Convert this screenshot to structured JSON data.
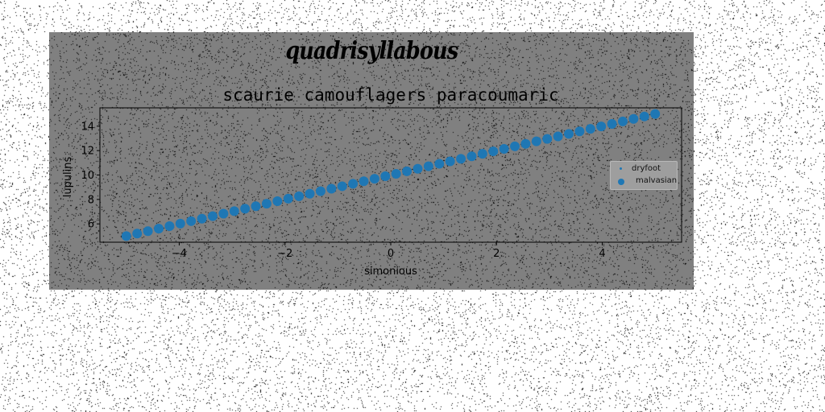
{
  "figure": {
    "suptitle": "quadrisyllabous"
  },
  "colors": {
    "page_background": "#ffffff",
    "panel_background": "#808080",
    "series_color": "#1f77b4",
    "noise_color": "#000000"
  },
  "chart_data": {
    "type": "scatter",
    "title": "scaurie camouflagers paracoumaric",
    "xlabel": "simonious",
    "ylabel": "lupulins",
    "xlim": [
      -5.5,
      5.5
    ],
    "ylim": [
      4.5,
      15.5
    ],
    "xticks": [
      -4,
      -2,
      0,
      2,
      4
    ],
    "yticks": [
      6,
      8,
      10,
      12,
      14
    ],
    "xtick_labels": [
      "−4",
      "−2",
      "0",
      "2",
      "4"
    ],
    "ytick_labels": [
      "6",
      "8",
      "10",
      "12",
      "14"
    ],
    "grid": false,
    "legend_position": "center-right",
    "series": [
      {
        "name": "dryfoot",
        "marker": "dot",
        "x_range": [
          -5,
          5
        ],
        "n_points": 50,
        "relation": "y = x + 10",
        "color": "#1f77b4"
      },
      {
        "name": "malvasian",
        "marker": "circle",
        "x_range": [
          -5,
          5
        ],
        "n_points": 50,
        "relation": "y = x + 10",
        "color": "#1f77b4"
      }
    ]
  }
}
